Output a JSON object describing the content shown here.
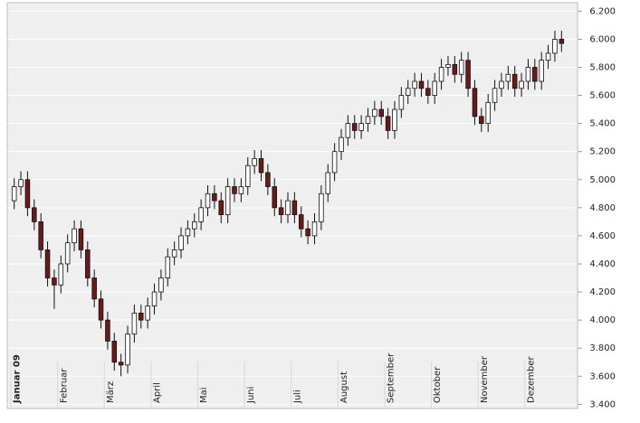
{
  "chart_data": {
    "type": "candlestick",
    "categories": [
      "Januar 09",
      null,
      null,
      null,
      null,
      null,
      null,
      "Februar",
      null,
      null,
      null,
      null,
      null,
      null,
      "März",
      null,
      null,
      null,
      null,
      null,
      null,
      "April",
      null,
      null,
      null,
      null,
      null,
      null,
      "Mai",
      null,
      null,
      null,
      null,
      null,
      null,
      "Juni",
      null,
      null,
      null,
      null,
      null,
      null,
      "Juli",
      null,
      null,
      null,
      null,
      null,
      null,
      "August",
      null,
      null,
      null,
      null,
      null,
      null,
      "September",
      null,
      null,
      null,
      null,
      null,
      null,
      "Oktober",
      null,
      null,
      null,
      null,
      null,
      null,
      "November",
      null,
      null,
      null,
      null,
      null,
      null,
      "Dezember",
      null,
      null,
      null,
      null,
      null
    ],
    "open": [
      4850,
      4950,
      5000,
      4800,
      4700,
      4500,
      4300,
      4250,
      4400,
      4550,
      4650,
      4500,
      4300,
      4150,
      4000,
      3850,
      3700,
      3680,
      3900,
      4050,
      4000,
      4100,
      4200,
      4300,
      4450,
      4500,
      4600,
      4650,
      4700,
      4800,
      4900,
      4850,
      4750,
      4950,
      4900,
      4950,
      5100,
      5150,
      5050,
      4950,
      4800,
      4750,
      4850,
      4750,
      4650,
      4600,
      4700,
      4900,
      5050,
      5200,
      5300,
      5400,
      5350,
      5400,
      5450,
      5500,
      5450,
      5350,
      5500,
      5600,
      5650,
      5700,
      5650,
      5600,
      5700,
      5800,
      5820,
      5750,
      5850,
      5650,
      5450,
      5400,
      5550,
      5650,
      5700,
      5750,
      5650,
      5700,
      5800,
      5700,
      5850,
      5900,
      6000
    ],
    "high": [
      5010,
      5060,
      5060,
      4860,
      4760,
      4560,
      4360,
      4460,
      4610,
      4710,
      4710,
      4560,
      4360,
      4210,
      4060,
      3910,
      3760,
      3960,
      4110,
      4110,
      4160,
      4260,
      4360,
      4510,
      4560,
      4660,
      4710,
      4760,
      4860,
      4960,
      4960,
      4910,
      5010,
      5010,
      5010,
      5160,
      5210,
      5210,
      5110,
      5010,
      4860,
      4910,
      4910,
      4810,
      4710,
      4760,
      4960,
      5110,
      5260,
      5360,
      5460,
      5460,
      5460,
      5510,
      5560,
      5560,
      5510,
      5560,
      5660,
      5710,
      5760,
      5760,
      5710,
      5760,
      5860,
      5880,
      5880,
      5910,
      5910,
      5710,
      5510,
      5610,
      5710,
      5760,
      5810,
      5810,
      5760,
      5860,
      5860,
      5910,
      5960,
      6060,
      6060
    ],
    "low": [
      4790,
      4890,
      4740,
      4640,
      4440,
      4240,
      4080,
      4190,
      4340,
      4490,
      4440,
      4240,
      4090,
      3940,
      3790,
      3640,
      3600,
      3620,
      3840,
      3940,
      3940,
      4040,
      4140,
      4240,
      4390,
      4440,
      4540,
      4590,
      4640,
      4740,
      4790,
      4690,
      4690,
      4840,
      4840,
      4890,
      5040,
      4990,
      4890,
      4740,
      4690,
      4690,
      4690,
      4590,
      4540,
      4540,
      4640,
      4840,
      4990,
      5140,
      5240,
      5290,
      5290,
      5340,
      5390,
      5390,
      5290,
      5290,
      5440,
      5540,
      5590,
      5590,
      5540,
      5540,
      5640,
      5740,
      5690,
      5690,
      5590,
      5390,
      5340,
      5340,
      5490,
      5590,
      5640,
      5590,
      5590,
      5640,
      5640,
      5640,
      5790,
      5840,
      5910
    ],
    "close": [
      4950,
      5000,
      4800,
      4700,
      4500,
      4300,
      4250,
      4400,
      4550,
      4650,
      4500,
      4300,
      4150,
      4000,
      3850,
      3700,
      3680,
      3900,
      4050,
      4000,
      4100,
      4200,
      4300,
      4450,
      4500,
      4600,
      4650,
      4700,
      4800,
      4900,
      4850,
      4750,
      4950,
      4900,
      4950,
      5100,
      5150,
      5050,
      4950,
      4800,
      4750,
      4850,
      4750,
      4650,
      4600,
      4700,
      4900,
      5050,
      5200,
      5300,
      5400,
      5350,
      5400,
      5450,
      5500,
      5450,
      5350,
      5500,
      5600,
      5650,
      5700,
      5650,
      5600,
      5700,
      5800,
      5820,
      5750,
      5850,
      5650,
      5450,
      5400,
      5550,
      5650,
      5700,
      5750,
      5650,
      5700,
      5800,
      5700,
      5850,
      5900,
      6000,
      5970
    ],
    "up_color": "#ffffff",
    "down_color": "#6b1a1a",
    "ylim": [
      3370,
      6260
    ],
    "yticks": [
      {
        "value": 3400,
        "label": "3.400"
      },
      {
        "value": 3600,
        "label": "3.600"
      },
      {
        "value": 3800,
        "label": "3.800"
      },
      {
        "value": 4000,
        "label": "4.000"
      },
      {
        "value": 4200,
        "label": "4.200"
      },
      {
        "value": 4400,
        "label": "4.400"
      },
      {
        "value": 4600,
        "label": "4.600"
      },
      {
        "value": 4800,
        "label": "4.800"
      },
      {
        "value": 5000,
        "label": "5.000"
      },
      {
        "value": 5200,
        "label": "5.200"
      },
      {
        "value": 5400,
        "label": "5.400"
      },
      {
        "value": 5600,
        "label": "5.600"
      },
      {
        "value": 5800,
        "label": "5.800"
      },
      {
        "value": 6000,
        "label": "6.000"
      },
      {
        "value": 6200,
        "label": "6.200"
      }
    ],
    "grid": true
  }
}
